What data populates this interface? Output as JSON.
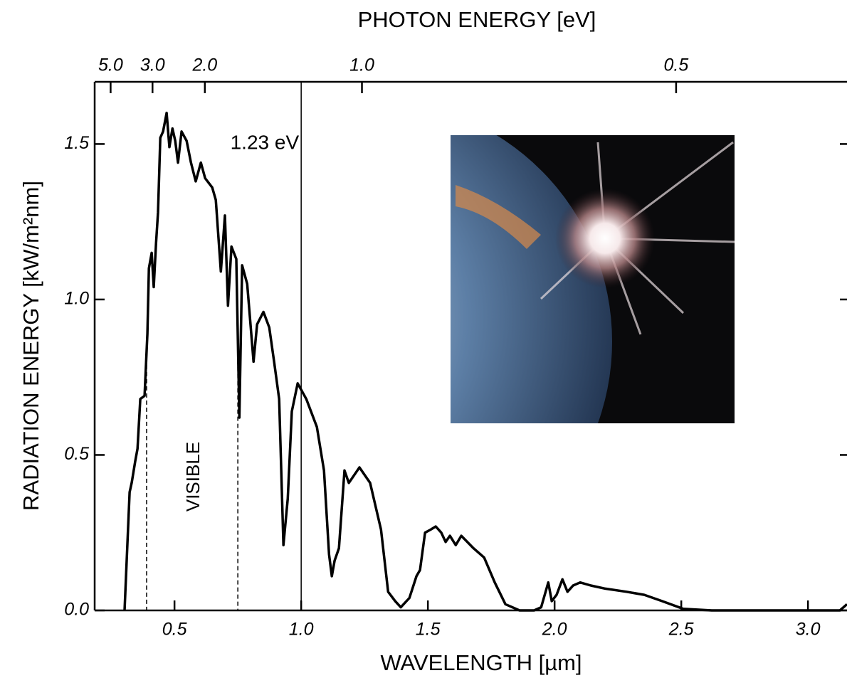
{
  "chart_data": {
    "type": "line",
    "x_label": "WAVELENGTH [µm]",
    "y_label": "RADIATION ENERGY [kW/m²nm]",
    "x2_label": "PHOTON ENERGY [eV]",
    "x": [
      0.303,
      0.323,
      0.331,
      0.345,
      0.354,
      0.365,
      0.382,
      0.393,
      0.399,
      0.41,
      0.418,
      0.427,
      0.435,
      0.444,
      0.455,
      0.469,
      0.48,
      0.492,
      0.503,
      0.514,
      0.528,
      0.548,
      0.565,
      0.584,
      0.604,
      0.621,
      0.649,
      0.663,
      0.683,
      0.699,
      0.711,
      0.725,
      0.744,
      0.756,
      0.767,
      0.787,
      0.801,
      0.812,
      0.826,
      0.851,
      0.874,
      0.893,
      0.913,
      0.93,
      0.947,
      0.963,
      0.986,
      1.02,
      1.062,
      1.09,
      1.11,
      1.121,
      1.132,
      1.149,
      1.171,
      1.188,
      1.23,
      1.272,
      1.315,
      1.343,
      1.371,
      1.393,
      1.427,
      1.455,
      1.469,
      1.489,
      1.511,
      1.531,
      1.553,
      1.57,
      1.587,
      1.61,
      1.632,
      1.68,
      1.722,
      1.764,
      1.806,
      1.862,
      1.919,
      1.947,
      1.975,
      1.989,
      2.008,
      2.031,
      2.051,
      2.073,
      2.101,
      2.143,
      2.2,
      2.284,
      2.354,
      2.424,
      2.508,
      2.62,
      2.9,
      3.04,
      3.126,
      3.154
    ],
    "series": [
      {
        "color": "#000000",
        "values": [
          0,
          0.38,
          0.41,
          0.48,
          0.52,
          0.68,
          0.69,
          0.89,
          1.1,
          1.15,
          1.04,
          1.18,
          1.28,
          1.52,
          1.54,
          1.6,
          1.49,
          1.55,
          1.51,
          1.44,
          1.54,
          1.51,
          1.44,
          1.38,
          1.44,
          1.39,
          1.36,
          1.32,
          1.09,
          1.27,
          0.98,
          1.17,
          1.13,
          0.62,
          1.11,
          1.05,
          0.91,
          0.8,
          0.92,
          0.96,
          0.91,
          0.8,
          0.68,
          0.21,
          0.36,
          0.64,
          0.73,
          0.68,
          0.59,
          0.45,
          0.18,
          0.11,
          0.16,
          0.2,
          0.45,
          0.41,
          0.46,
          0.41,
          0.26,
          0.06,
          0.03,
          0.01,
          0.04,
          0.11,
          0.13,
          0.25,
          0.26,
          0.27,
          0.25,
          0.22,
          0.24,
          0.21,
          0.24,
          0.2,
          0.17,
          0.09,
          0.02,
          0,
          0,
          0.01,
          0.09,
          0.03,
          0.05,
          0.1,
          0.06,
          0.08,
          0.09,
          0.08,
          0.07,
          0.06,
          0.05,
          0.03,
          0.005,
          0,
          0,
          0,
          0,
          0.02
        ]
      }
    ],
    "xlim": [
      0.185,
      3.154
    ],
    "ylim": [
      0,
      1.7
    ],
    "xticks": [
      0.5,
      {
        "value": 1,
        "label": "1.0"
      },
      1.5,
      {
        "value": 2,
        "label": "2.0"
      },
      2.5,
      {
        "value": 3,
        "label": "3.0"
      }
    ],
    "yticks": [
      {
        "value": 0,
        "label": "0.0"
      },
      0.5,
      {
        "value": 1,
        "label": "1.0"
      },
      1.5
    ],
    "x2ticks": [
      {
        "value": 5,
        "label": "5.0"
      },
      {
        "value": 3,
        "label": "3.0"
      },
      {
        "value": 2,
        "label": "2.0"
      },
      {
        "value": 1,
        "label": "1.0"
      },
      0.5
    ],
    "energy_line": {
      "label": "1.23 eV",
      "x": 1.0
    },
    "visible_band": {
      "label": "VISIBLE",
      "x": [
        0.39,
        0.75
      ]
    }
  }
}
